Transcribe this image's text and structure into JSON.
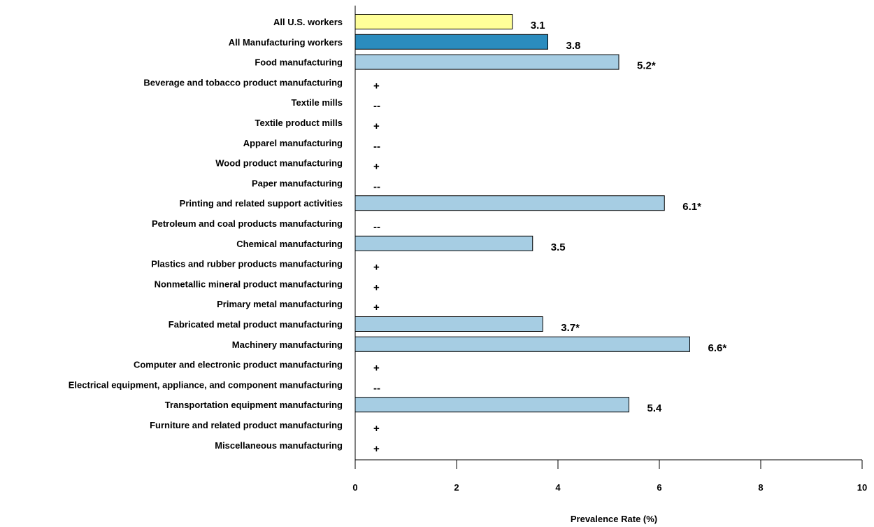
{
  "chart_data": {
    "type": "bar",
    "orientation": "horizontal",
    "xlabel": "Prevalence Rate (%)",
    "xlim": [
      0,
      10
    ],
    "xticks": [
      0,
      2,
      4,
      6,
      8,
      10
    ],
    "grid": false,
    "colors": {
      "all_us": "#ffff99",
      "all_manufacturing": "#2b8cbe",
      "industry": "#a6cde3",
      "outline": "#000000"
    },
    "rows": [
      {
        "category": "All U.S. workers",
        "value": 3.1,
        "label": "3.1",
        "color_key": "all_us"
      },
      {
        "category": "All Manufacturing workers",
        "value": 3.8,
        "label": "3.8",
        "color_key": "all_manufacturing"
      },
      {
        "category": "Food manufacturing",
        "value": 5.2,
        "label": "5.2*",
        "color_key": "industry"
      },
      {
        "category": "Beverage and tobacco product manufacturing",
        "value": null,
        "label": "+",
        "color_key": "industry"
      },
      {
        "category": "Textile mills",
        "value": null,
        "label": "--",
        "color_key": "industry"
      },
      {
        "category": "Textile product mills",
        "value": null,
        "label": "+",
        "color_key": "industry"
      },
      {
        "category": "Apparel manufacturing",
        "value": null,
        "label": "--",
        "color_key": "industry"
      },
      {
        "category": "Wood product manufacturing",
        "value": null,
        "label": "+",
        "color_key": "industry"
      },
      {
        "category": "Paper manufacturing",
        "value": null,
        "label": "--",
        "color_key": "industry"
      },
      {
        "category": "Printing and related support activities",
        "value": 6.1,
        "label": "6.1*",
        "color_key": "industry"
      },
      {
        "category": "Petroleum and coal products manufacturing",
        "value": null,
        "label": "--",
        "color_key": "industry"
      },
      {
        "category": "Chemical manufacturing",
        "value": 3.5,
        "label": "3.5",
        "color_key": "industry"
      },
      {
        "category": "Plastics and rubber products manufacturing",
        "value": null,
        "label": "+",
        "color_key": "industry"
      },
      {
        "category": "Nonmetallic mineral product manufacturing",
        "value": null,
        "label": "+",
        "color_key": "industry"
      },
      {
        "category": "Primary metal manufacturing",
        "value": null,
        "label": "+",
        "color_key": "industry"
      },
      {
        "category": "Fabricated metal product manufacturing",
        "value": 3.7,
        "label": "3.7*",
        "color_key": "industry"
      },
      {
        "category": "Machinery manufacturing",
        "value": 6.6,
        "label": "6.6*",
        "color_key": "industry"
      },
      {
        "category": "Computer and electronic product manufacturing",
        "value": null,
        "label": "+",
        "color_key": "industry"
      },
      {
        "category": "Electrical equipment, appliance, and component manufacturing",
        "value": null,
        "label": "--",
        "color_key": "industry"
      },
      {
        "category": "Transportation equipment manufacturing",
        "value": 5.4,
        "label": "5.4",
        "color_key": "industry"
      },
      {
        "category": "Furniture and related product manufacturing",
        "value": null,
        "label": "+",
        "color_key": "industry"
      },
      {
        "category": "Miscellaneous manufacturing",
        "value": null,
        "label": "+",
        "color_key": "industry"
      }
    ]
  }
}
